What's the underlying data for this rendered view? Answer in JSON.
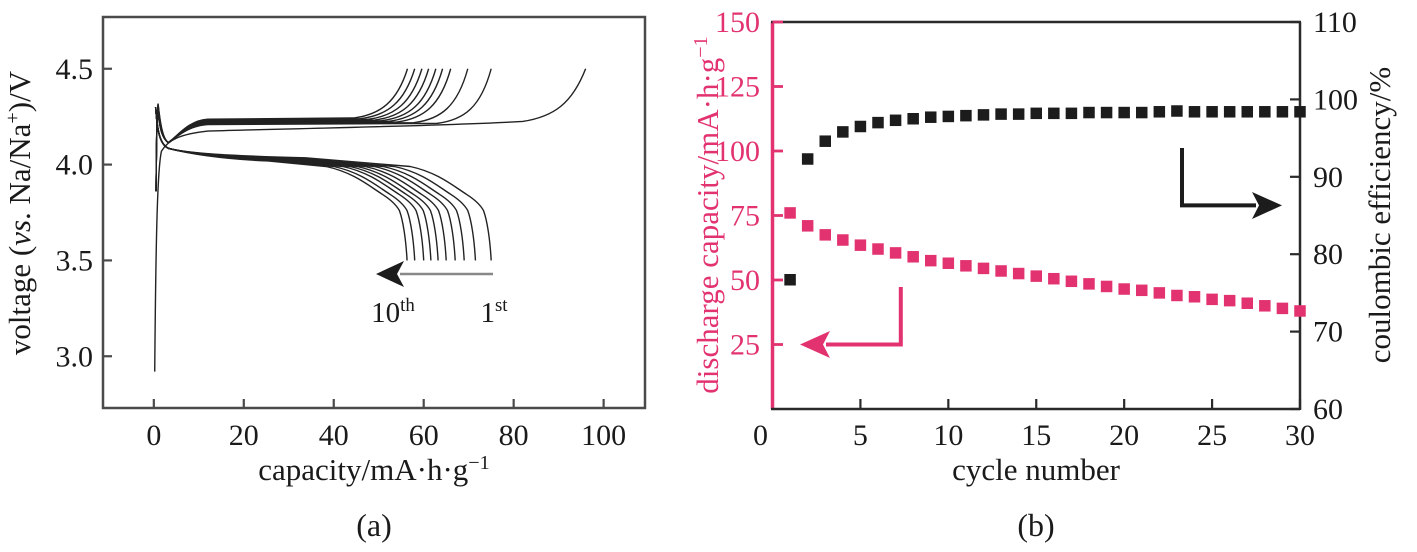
{
  "panels": {
    "a": {
      "panel_label": "(a)",
      "xlabel_parts": [
        {
          "t": "capacity/mA·h·g"
        },
        {
          "t": "−1",
          "sup": true
        }
      ],
      "ylabel_parts": [
        {
          "t": "voltage ("
        },
        {
          "t": "vs",
          "italic": true
        },
        {
          "t": ". Na/Na"
        },
        {
          "t": "+",
          "sup": true
        },
        {
          "t": ")/V"
        }
      ],
      "arrow_labels": {
        "newest": [
          {
            "t": "10"
          },
          {
            "t": "th",
            "sup": true
          }
        ],
        "oldest": [
          {
            "t": "1"
          },
          {
            "t": "st",
            "sup": true
          }
        ]
      }
    },
    "b": {
      "panel_label": "(b)",
      "xlabel": "cycle number",
      "ylabel_left_parts": [
        {
          "t": "discharge capacity/mA·h·g"
        },
        {
          "t": "−1",
          "sup": true
        }
      ],
      "ylabel_right_parts": [
        {
          "t": "coulombic efficiency/%"
        }
      ]
    }
  },
  "colors": {
    "pink": "#e23370",
    "black": "#1c1c1c",
    "box_gray": "#4a4a4a",
    "curve": "#222222",
    "arrow_gray": "#888888"
  },
  "chart_data": [
    {
      "type": "line",
      "title": "galvanostatic charge-discharge curves, 1st to 10th cycle",
      "xlabel": "capacity/mA·h·g−1",
      "ylabel": "voltage (vs. Na/Na+)/V",
      "xlim": [
        -11.3,
        109.2
      ],
      "ylim": [
        2.73,
        4.77
      ],
      "xticks": [
        0,
        20,
        40,
        60,
        80,
        100
      ],
      "x_tick_labels": [
        "0",
        "20",
        "40",
        "60",
        "80",
        "100"
      ],
      "yticks": [
        3.0,
        3.5,
        4.0,
        4.5
      ],
      "y_tick_labels": [
        "3.0",
        "3.5",
        "4.0",
        "4.5"
      ],
      "grid": false,
      "upper_cutoff_voltage": 4.5,
      "lower_cutoff_voltage": 3.5,
      "first_charge_start_voltage": 2.92,
      "charge_plateau_voltage": 4.22,
      "discharge_plateau_voltage": 4.03,
      "cycles": [
        1,
        2,
        3,
        4,
        5,
        6,
        7,
        8,
        9,
        10
      ],
      "charge_end_capacity": [
        96,
        75,
        69.8,
        66,
        64.2,
        62.7,
        61.1,
        59.6,
        58,
        56.4
      ],
      "discharge_end_capacity": [
        75,
        71.5,
        69,
        67,
        65,
        63.2,
        61.6,
        60,
        58,
        56.3
      ],
      "annotation": "arrow from 1st toward 10th: capacity decreases with cycling"
    },
    {
      "type": "scatter",
      "title": "cycling performance over 30 cycles",
      "xlabel": "cycle number",
      "ylabel_left": "discharge capacity/mA·h·g−1",
      "ylabel_right": "coulombic efficiency/%",
      "xlim": [
        0,
        30
      ],
      "ylim_left": [
        0,
        150
      ],
      "ylim_right": [
        60,
        110
      ],
      "xticks": [
        0,
        5,
        10,
        15,
        20,
        25,
        30
      ],
      "x_tick_labels": [
        "0",
        "5",
        "10",
        "15",
        "20",
        "25",
        "30"
      ],
      "yticks_left": [
        25,
        50,
        75,
        100,
        125,
        150
      ],
      "y_tick_labels_left": [
        "25",
        "50",
        "75",
        "100",
        "125",
        "150"
      ],
      "yticks_right": [
        60,
        70,
        80,
        90,
        100,
        110
      ],
      "y_tick_labels_right": [
        "60",
        "70",
        "80",
        "90",
        "100",
        "110"
      ],
      "grid": false,
      "x": [
        1,
        2,
        3,
        4,
        5,
        6,
        7,
        8,
        9,
        10,
        11,
        12,
        13,
        14,
        15,
        16,
        17,
        18,
        19,
        20,
        21,
        22,
        23,
        24,
        25,
        26,
        27,
        28,
        29,
        30
      ],
      "series": [
        {
          "name": "discharge capacity",
          "axis": "left",
          "marker": "square",
          "color": "#e23370",
          "values": [
            76,
            71,
            67.5,
            65.5,
            63.5,
            62,
            60.5,
            59,
            57.5,
            56.5,
            55.5,
            54.5,
            53.5,
            52.5,
            51.5,
            50.5,
            49.5,
            48.5,
            47.5,
            46.5,
            46,
            45,
            44,
            43.5,
            42.5,
            42,
            41,
            40,
            39,
            38
          ]
        },
        {
          "name": "coulombic efficiency",
          "axis": "right",
          "marker": "square",
          "color": "#1c1c1c",
          "values": [
            76.7,
            92.3,
            94.6,
            95.8,
            96.5,
            97,
            97.3,
            97.5,
            97.7,
            97.8,
            97.9,
            98,
            98.1,
            98.1,
            98.2,
            98.2,
            98.2,
            98.3,
            98.3,
            98.3,
            98.3,
            98.4,
            98.5,
            98.4,
            98.4,
            98.4,
            98.4,
            98.4,
            98.4,
            98.4
          ]
        }
      ],
      "callout_arrows": {
        "left_pink_arrow": "points to discharge capacity axis",
        "right_black_arrow": "points to coulombic efficiency axis"
      }
    }
  ]
}
